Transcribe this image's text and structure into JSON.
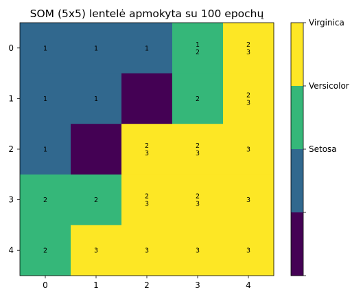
{
  "chart_data": {
    "type": "heatmap",
    "title": "SOM (5x5) lentelė apmokyta su 100 epochų",
    "x_ticks": [
      "0",
      "1",
      "2",
      "3",
      "4"
    ],
    "y_ticks": [
      "0",
      "1",
      "2",
      "3",
      "4"
    ],
    "grid": false,
    "colormap": [
      "#440154",
      "#31688e",
      "#35b779",
      "#fde725"
    ],
    "cells": [
      [
        {
          "class": 1,
          "labels": [
            "1"
          ]
        },
        {
          "class": 1,
          "labels": [
            "1"
          ]
        },
        {
          "class": 1,
          "labels": [
            "1"
          ]
        },
        {
          "class": 2,
          "labels": [
            "1",
            "2"
          ]
        },
        {
          "class": 3,
          "labels": [
            "2",
            "3"
          ]
        }
      ],
      [
        {
          "class": 1,
          "labels": [
            "1"
          ]
        },
        {
          "class": 1,
          "labels": [
            "1"
          ]
        },
        {
          "class": 0,
          "labels": []
        },
        {
          "class": 2,
          "labels": [
            "2"
          ]
        },
        {
          "class": 3,
          "labels": [
            "2",
            "3"
          ]
        }
      ],
      [
        {
          "class": 1,
          "labels": [
            "1"
          ]
        },
        {
          "class": 0,
          "labels": []
        },
        {
          "class": 3,
          "labels": [
            "2",
            "3"
          ]
        },
        {
          "class": 3,
          "labels": [
            "2",
            "3"
          ]
        },
        {
          "class": 3,
          "labels": [
            "3"
          ]
        }
      ],
      [
        {
          "class": 2,
          "labels": [
            "2"
          ]
        },
        {
          "class": 2,
          "labels": [
            "2"
          ]
        },
        {
          "class": 3,
          "labels": [
            "2",
            "3"
          ]
        },
        {
          "class": 3,
          "labels": [
            "2",
            "3"
          ]
        },
        {
          "class": 3,
          "labels": [
            "3"
          ]
        }
      ],
      [
        {
          "class": 2,
          "labels": [
            "2"
          ]
        },
        {
          "class": 3,
          "labels": [
            "3"
          ]
        },
        {
          "class": 3,
          "labels": [
            "3"
          ]
        },
        {
          "class": 3,
          "labels": [
            "3"
          ]
        },
        {
          "class": 3,
          "labels": [
            "3"
          ]
        }
      ]
    ],
    "colorbar": {
      "segments": 4,
      "tick_labels": [
        "",
        "Setosa",
        "Versicolor",
        "Virginica"
      ]
    }
  }
}
